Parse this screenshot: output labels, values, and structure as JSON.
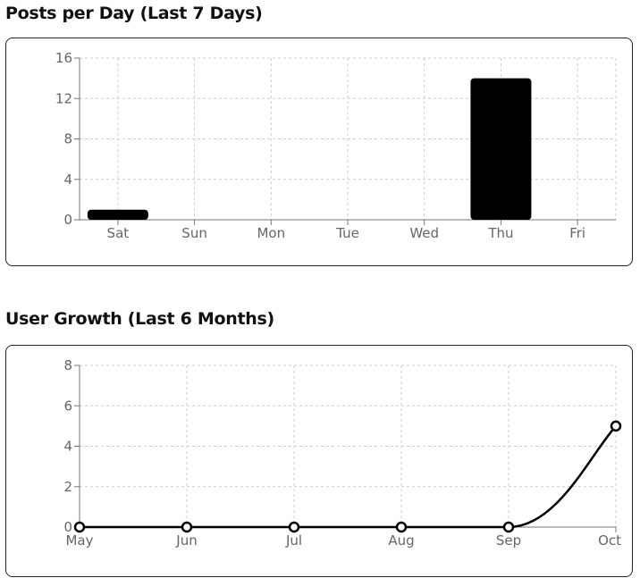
{
  "posts_section": {
    "title": "Posts per Day (Last 7 Days)"
  },
  "growth_section": {
    "title": "User Growth (Last 6 Months)"
  },
  "chart_data": [
    {
      "type": "bar",
      "title": "Posts per Day (Last 7 Days)",
      "categories": [
        "Sat",
        "Sun",
        "Mon",
        "Tue",
        "Wed",
        "Thu",
        "Fri"
      ],
      "values": [
        1,
        0,
        0,
        0,
        0,
        14,
        0
      ],
      "ylim": [
        0,
        16
      ],
      "yticks": [
        0,
        4,
        8,
        12,
        16
      ],
      "grid": true,
      "bar_color": "#000000"
    },
    {
      "type": "line",
      "title": "User Growth (Last 6 Months)",
      "categories": [
        "May",
        "Jun",
        "Jul",
        "Aug",
        "Sep",
        "Oct"
      ],
      "values": [
        0,
        0,
        0,
        0,
        0,
        5
      ],
      "ylim": [
        0,
        8
      ],
      "yticks": [
        0,
        2,
        4,
        6,
        8
      ],
      "grid": true,
      "line_color": "#000000",
      "marker_fill": "#ffffff"
    }
  ]
}
